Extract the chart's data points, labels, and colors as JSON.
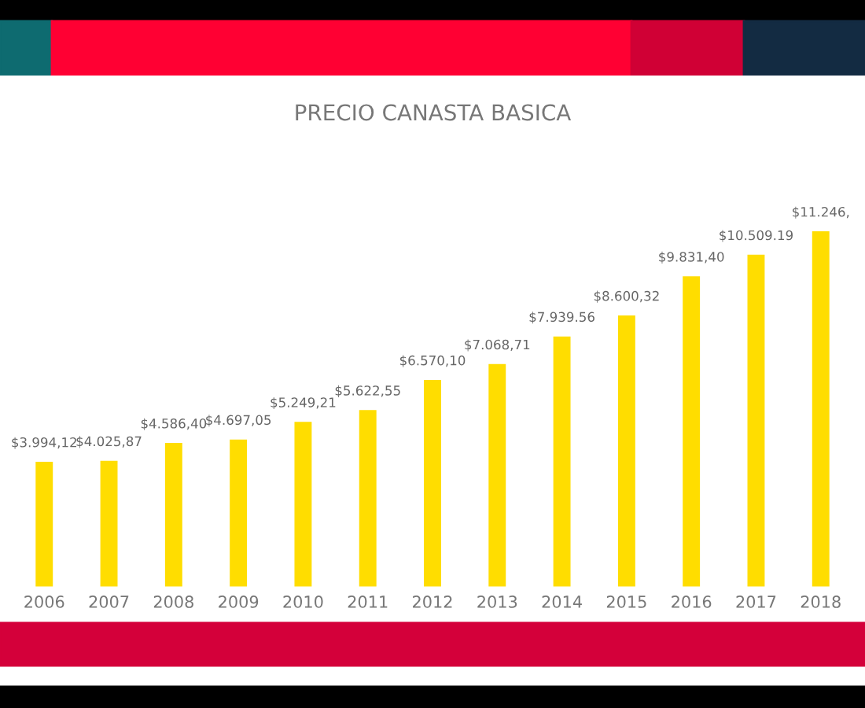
{
  "chart_data": {
    "type": "bar",
    "title": "PRECIO CANASTA BASICA",
    "categories": [
      "2006",
      "2007",
      "2008",
      "2009",
      "2010",
      "2011",
      "2012",
      "2013",
      "2014",
      "2015",
      "2016",
      "2017",
      "2018"
    ],
    "values": [
      3994.12,
      4025.87,
      4586.4,
      4697.05,
      5249.21,
      5622.55,
      6570.1,
      7068.71,
      7939.56,
      8600.32,
      9831.4,
      10509.19,
      11246
    ],
    "value_labels": [
      "$3.994,12",
      "$4.025,87",
      "$4.586,40",
      "$4.697,05",
      "$5.249,21",
      "$5.622,55",
      "$6.570,10",
      "$7.068,71",
      "$7.939.56",
      "$8.600,32",
      "$9.831,40",
      "$10.509.19",
      "$11.246,"
    ],
    "color": "#ffdd00",
    "grid": false,
    "legend": false
  }
}
